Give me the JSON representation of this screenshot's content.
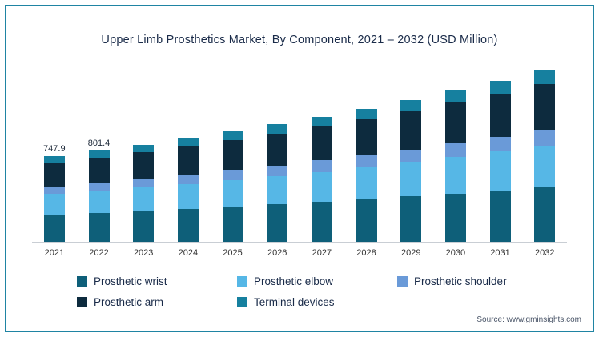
{
  "chart_data": {
    "type": "bar",
    "stacked": true,
    "title": "Upper Limb Prosthetics Market, By Component, 2021 – 2032 (USD Million)",
    "categories": [
      "2021",
      "2022",
      "2023",
      "2024",
      "2025",
      "2026",
      "2027",
      "2028",
      "2029",
      "2030",
      "2031",
      "2032"
    ],
    "series": [
      {
        "name": "Prosthetic wrist",
        "color": "#0e5f79",
        "values": [
          239.3,
          256.4,
          273.0,
          290.6,
          309.4,
          329.6,
          351.0,
          373.8,
          398.1,
          424.0,
          451.5,
          481.0
        ]
      },
      {
        "name": "Prosthetic elbow",
        "color": "#56b7e6",
        "values": [
          179.5,
          192.3,
          204.7,
          217.9,
          232.1,
          247.2,
          263.3,
          280.3,
          298.6,
          318.0,
          338.6,
          360.7
        ]
      },
      {
        "name": "Prosthetic shoulder",
        "color": "#6a9ad8",
        "values": [
          67.3,
          72.1,
          76.8,
          81.7,
          87.0,
          92.7,
          98.7,
          105.1,
          112.0,
          119.3,
          127.0,
          135.3
        ]
      },
      {
        "name": "Prosthetic arm",
        "color": "#0d2b3e",
        "values": [
          201.9,
          216.4,
          230.3,
          245.2,
          261.1,
          278.1,
          296.2,
          315.4,
          335.9,
          357.8,
          381.0,
          405.8
        ]
      },
      {
        "name": "Terminal devices",
        "color": "#16809f",
        "values": [
          59.8,
          64.1,
          68.2,
          72.6,
          77.4,
          82.4,
          87.8,
          93.4,
          99.5,
          106.0,
          112.9,
          120.2
        ]
      }
    ],
    "totals": [
      747.9,
      801.4,
      853.0,
      908.0,
      967.0,
      1030.0,
      1097.0,
      1168.0,
      1244.0,
      1325.0,
      1411.0,
      1503.0
    ],
    "bar_labels": [
      "747.9",
      "801.4",
      "",
      "",
      "",
      "",
      "",
      "",
      "",
      "",
      "",
      ""
    ],
    "ylim": [
      0,
      1600
    ],
    "grid": false,
    "legend_position": "bottom",
    "stack_order_bottom_to_top": [
      "Prosthetic wrist",
      "Prosthetic elbow",
      "Prosthetic shoulder",
      "Prosthetic arm",
      "Terminal devices"
    ]
  },
  "source": "Source: www.gminsights.com",
  "colors": {
    "border": "#1f84a3",
    "axis_line": "#c9ced4",
    "title_text": "#1a2b49"
  }
}
